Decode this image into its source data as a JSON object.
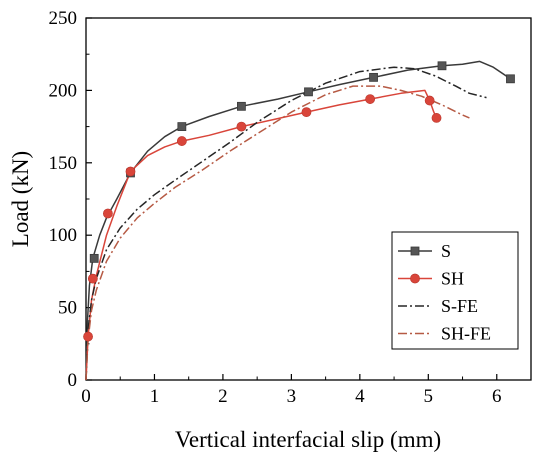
{
  "chart_data": {
    "type": "line",
    "xlabel": "Vertical interfacial slip (mm)",
    "ylabel": "Load (kN)",
    "xlim": [
      0,
      6.5
    ],
    "ylim": [
      0,
      250
    ],
    "xticks": [
      0,
      1,
      2,
      3,
      4,
      5,
      6
    ],
    "yticks": [
      0,
      50,
      100,
      150,
      200,
      250
    ],
    "grid": false,
    "legend_position": "bottom-right",
    "series": [
      {
        "name": "S",
        "color": "#3a3a3a",
        "style": "solid",
        "marker": "square",
        "x": [
          0,
          0.02,
          0.05,
          0.1,
          0.2,
          0.3,
          0.45,
          0.65,
          0.9,
          1.15,
          1.4,
          1.8,
          2.27,
          2.8,
          3.25,
          3.7,
          4.2,
          4.7,
          5.2,
          5.5,
          5.75,
          5.95,
          6.2
        ],
        "y": [
          0,
          40,
          65,
          84,
          100,
          112,
          125,
          143,
          158,
          168,
          175,
          182,
          189,
          194,
          199,
          204,
          209,
          214,
          217,
          218,
          220,
          216,
          208
        ],
        "marker_x": [
          0.12,
          0.65,
          1.4,
          2.27,
          3.25,
          4.2,
          5.2,
          6.2
        ],
        "marker_y": [
          84,
          143,
          175,
          189,
          199,
          209,
          217,
          208
        ]
      },
      {
        "name": "SH",
        "color": "#d9453a",
        "style": "solid",
        "marker": "circle",
        "x": [
          0,
          0.03,
          0.08,
          0.15,
          0.3,
          0.45,
          0.65,
          0.9,
          1.15,
          1.4,
          1.8,
          2.27,
          2.75,
          3.22,
          3.7,
          4.15,
          4.6,
          4.95,
          5.02,
          5.08,
          5.12
        ],
        "y": [
          0,
          30,
          55,
          72,
          100,
          120,
          144,
          155,
          161,
          165,
          169,
          175,
          180,
          185,
          190,
          194,
          198,
          200,
          193,
          185,
          181
        ],
        "marker_x": [
          0.03,
          0.1,
          0.32,
          0.65,
          1.4,
          2.27,
          3.22,
          4.15,
          5.02,
          5.12
        ],
        "marker_y": [
          30,
          70,
          115,
          144,
          165,
          175,
          185,
          194,
          193,
          181
        ]
      },
      {
        "name": "S-FE",
        "color": "#262626",
        "style": "dashdot",
        "marker": "none",
        "x": [
          0,
          0.03,
          0.08,
          0.15,
          0.3,
          0.5,
          0.75,
          1.0,
          1.3,
          1.7,
          2.1,
          2.5,
          3.0,
          3.5,
          4.0,
          4.5,
          4.8,
          5.1,
          5.4,
          5.6,
          5.85
        ],
        "y": [
          0,
          35,
          55,
          70,
          90,
          105,
          118,
          128,
          138,
          151,
          164,
          178,
          193,
          205,
          213,
          216,
          215,
          210,
          203,
          198,
          195
        ],
        "marker_x": [],
        "marker_y": []
      },
      {
        "name": "SH-FE",
        "color": "#b65a44",
        "style": "dashdot",
        "marker": "none",
        "x": [
          0,
          0.03,
          0.08,
          0.15,
          0.3,
          0.5,
          0.75,
          1.0,
          1.3,
          1.7,
          2.1,
          2.5,
          3.0,
          3.5,
          3.9,
          4.3,
          4.6,
          4.9,
          5.2,
          5.5,
          5.6
        ],
        "y": [
          0,
          28,
          48,
          62,
          82,
          98,
          112,
          122,
          133,
          145,
          158,
          170,
          185,
          197,
          203,
          203,
          200,
          196,
          190,
          183,
          181
        ],
        "marker_x": [],
        "marker_y": []
      }
    ]
  }
}
